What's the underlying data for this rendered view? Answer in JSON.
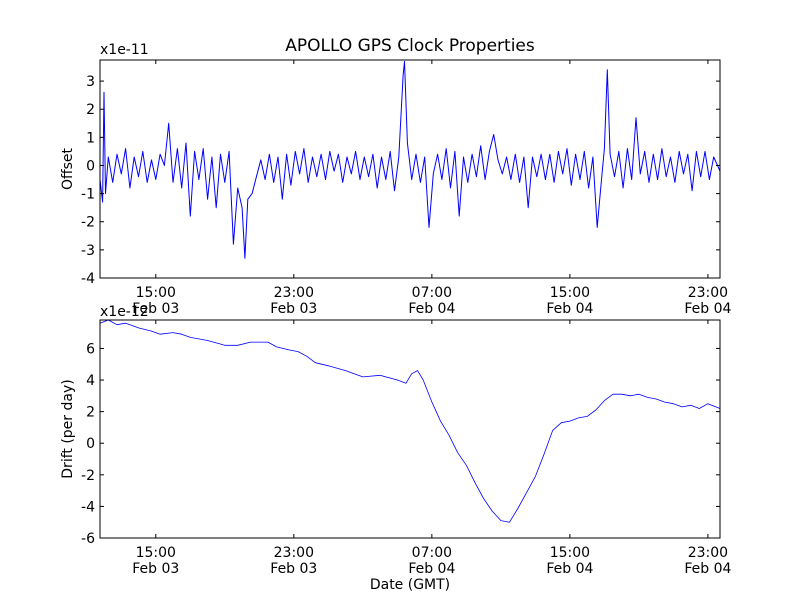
{
  "title": "APOLLO GPS Clock Properties",
  "chart_data": [
    {
      "type": "line",
      "ylabel": "Offset",
      "y_multiplier": "x1e-11",
      "ylim": [
        -4,
        3.75
      ],
      "yticks": [
        -4,
        -3,
        -2,
        -1,
        0,
        1,
        2,
        3
      ],
      "ytick_labels": [
        "-4",
        "-3",
        "-2",
        "-1",
        "0",
        "1",
        "2",
        "3"
      ],
      "xlim": [
        "Feb 03 11:46",
        "Feb 04 23:42"
      ],
      "xticks": [
        {
          "time": "Feb 03 15:00",
          "line1": "15:00",
          "line2": "Feb 03"
        },
        {
          "time": "Feb 03 23:00",
          "line1": "23:00",
          "line2": "Feb 03"
        },
        {
          "time": "Feb 04 07:00",
          "line1": "07:00",
          "line2": "Feb 04"
        },
        {
          "time": "Feb 04 15:00",
          "line1": "15:00",
          "line2": "Feb 04"
        },
        {
          "time": "Feb 04 23:00",
          "line1": "23:00",
          "line2": "Feb 04"
        }
      ],
      "color": "#0000ff",
      "grid": false,
      "series": [
        {
          "points": [
            [
              "Feb 03 11:46",
              -0.5
            ],
            [
              "Feb 03 11:55",
              -1.3
            ],
            [
              "Feb 03 12:00",
              2.6
            ],
            [
              "Feb 03 12:05",
              -1.0
            ],
            [
              "Feb 03 12:15",
              0.3
            ],
            [
              "Feb 03 12:30",
              -0.6
            ],
            [
              "Feb 03 12:45",
              0.4
            ],
            [
              "Feb 03 13:00",
              -0.3
            ],
            [
              "Feb 03 13:15",
              0.6
            ],
            [
              "Feb 03 13:30",
              -0.8
            ],
            [
              "Feb 03 13:45",
              0.3
            ],
            [
              "Feb 03 14:00",
              -0.4
            ],
            [
              "Feb 03 14:15",
              0.5
            ],
            [
              "Feb 03 14:30",
              -0.6
            ],
            [
              "Feb 03 14:45",
              0.2
            ],
            [
              "Feb 03 15:00",
              -0.5
            ],
            [
              "Feb 03 15:15",
              0.4
            ],
            [
              "Feb 03 15:30",
              0.0
            ],
            [
              "Feb 03 15:45",
              1.5
            ],
            [
              "Feb 03 16:00",
              -0.6
            ],
            [
              "Feb 03 16:15",
              0.6
            ],
            [
              "Feb 03 16:30",
              -0.8
            ],
            [
              "Feb 03 16:45",
              0.8
            ],
            [
              "Feb 03 17:00",
              -1.8
            ],
            [
              "Feb 03 17:15",
              0.5
            ],
            [
              "Feb 03 17:30",
              -0.5
            ],
            [
              "Feb 03 17:45",
              0.6
            ],
            [
              "Feb 03 18:00",
              -1.2
            ],
            [
              "Feb 03 18:15",
              0.3
            ],
            [
              "Feb 03 18:30",
              -1.5
            ],
            [
              "Feb 03 18:45",
              0.4
            ],
            [
              "Feb 03 19:00",
              -0.6
            ],
            [
              "Feb 03 19:15",
              0.5
            ],
            [
              "Feb 03 19:30",
              -2.8
            ],
            [
              "Feb 03 19:45",
              -0.8
            ],
            [
              "Feb 03 20:00",
              -1.5
            ],
            [
              "Feb 03 20:10",
              -3.3
            ],
            [
              "Feb 03 20:20",
              -1.2
            ],
            [
              "Feb 03 20:35",
              -1.0
            ],
            [
              "Feb 03 20:50",
              -0.4
            ],
            [
              "Feb 03 21:05",
              0.2
            ],
            [
              "Feb 03 21:20",
              -0.5
            ],
            [
              "Feb 03 21:35",
              0.4
            ],
            [
              "Feb 03 21:50",
              -0.6
            ],
            [
              "Feb 03 22:05",
              0.3
            ],
            [
              "Feb 03 22:20",
              -1.2
            ],
            [
              "Feb 03 22:35",
              0.4
            ],
            [
              "Feb 03 22:50",
              -0.7
            ],
            [
              "Feb 03 23:05",
              0.5
            ],
            [
              "Feb 03 23:20",
              -0.3
            ],
            [
              "Feb 03 23:35",
              0.6
            ],
            [
              "Feb 03 23:50",
              -0.6
            ],
            [
              "Feb 04 00:05",
              0.3
            ],
            [
              "Feb 04 00:20",
              -0.4
            ],
            [
              "Feb 04 00:35",
              0.4
            ],
            [
              "Feb 04 00:50",
              -0.5
            ],
            [
              "Feb 04 01:05",
              0.5
            ],
            [
              "Feb 04 01:20",
              -0.2
            ],
            [
              "Feb 04 01:35",
              0.4
            ],
            [
              "Feb 04 01:50",
              -0.6
            ],
            [
              "Feb 04 02:05",
              0.3
            ],
            [
              "Feb 04 02:20",
              -0.3
            ],
            [
              "Feb 04 02:35",
              0.5
            ],
            [
              "Feb 04 02:50",
              -0.5
            ],
            [
              "Feb 04 03:05",
              0.3
            ],
            [
              "Feb 04 03:20",
              -0.4
            ],
            [
              "Feb 04 03:35",
              0.4
            ],
            [
              "Feb 04 03:50",
              -0.8
            ],
            [
              "Feb 04 04:05",
              0.3
            ],
            [
              "Feb 04 04:20",
              -0.5
            ],
            [
              "Feb 04 04:35",
              0.5
            ],
            [
              "Feb 04 04:50",
              -0.9
            ],
            [
              "Feb 04 05:05",
              0.3
            ],
            [
              "Feb 04 05:20",
              3.2
            ],
            [
              "Feb 04 05:25",
              3.7
            ],
            [
              "Feb 04 05:35",
              0.8
            ],
            [
              "Feb 04 05:50",
              -0.5
            ],
            [
              "Feb 04 06:05",
              0.4
            ],
            [
              "Feb 04 06:20",
              -0.6
            ],
            [
              "Feb 04 06:35",
              0.3
            ],
            [
              "Feb 04 06:50",
              -2.2
            ],
            [
              "Feb 04 07:05",
              -0.3
            ],
            [
              "Feb 04 07:20",
              0.4
            ],
            [
              "Feb 04 07:35",
              -0.5
            ],
            [
              "Feb 04 07:50",
              0.6
            ],
            [
              "Feb 04 08:05",
              -0.8
            ],
            [
              "Feb 04 08:20",
              0.5
            ],
            [
              "Feb 04 08:35",
              -1.8
            ],
            [
              "Feb 04 08:50",
              0.3
            ],
            [
              "Feb 04 09:05",
              -0.6
            ],
            [
              "Feb 04 09:20",
              0.4
            ],
            [
              "Feb 04 09:35",
              -0.4
            ],
            [
              "Feb 04 09:50",
              0.7
            ],
            [
              "Feb 04 10:05",
              -0.5
            ],
            [
              "Feb 04 10:20",
              0.5
            ],
            [
              "Feb 04 10:35",
              1.1
            ],
            [
              "Feb 04 10:50",
              0.2
            ],
            [
              "Feb 04 11:05",
              -0.3
            ],
            [
              "Feb 04 11:20",
              0.3
            ],
            [
              "Feb 04 11:35",
              -0.5
            ],
            [
              "Feb 04 11:50",
              0.4
            ],
            [
              "Feb 04 12:05",
              -0.6
            ],
            [
              "Feb 04 12:20",
              0.3
            ],
            [
              "Feb 04 12:35",
              -1.5
            ],
            [
              "Feb 04 12:50",
              0.3
            ],
            [
              "Feb 04 13:05",
              -0.4
            ],
            [
              "Feb 04 13:20",
              0.4
            ],
            [
              "Feb 04 13:35",
              -0.5
            ],
            [
              "Feb 04 13:50",
              0.4
            ],
            [
              "Feb 04 14:05",
              -0.6
            ],
            [
              "Feb 04 14:20",
              0.5
            ],
            [
              "Feb 04 14:35",
              -0.3
            ],
            [
              "Feb 04 14:50",
              0.6
            ],
            [
              "Feb 04 15:05",
              -0.7
            ],
            [
              "Feb 04 15:20",
              0.4
            ],
            [
              "Feb 04 15:35",
              -0.5
            ],
            [
              "Feb 04 15:50",
              0.5
            ],
            [
              "Feb 04 16:05",
              -0.8
            ],
            [
              "Feb 04 16:20",
              0.3
            ],
            [
              "Feb 04 16:35",
              -2.2
            ],
            [
              "Feb 04 16:50",
              -0.5
            ],
            [
              "Feb 04 17:00",
              0.6
            ],
            [
              "Feb 04 17:10",
              3.4
            ],
            [
              "Feb 04 17:20",
              0.4
            ],
            [
              "Feb 04 17:35",
              -0.4
            ],
            [
              "Feb 04 17:50",
              0.5
            ],
            [
              "Feb 04 18:05",
              -0.8
            ],
            [
              "Feb 04 18:20",
              0.6
            ],
            [
              "Feb 04 18:35",
              -0.5
            ],
            [
              "Feb 04 18:50",
              1.7
            ],
            [
              "Feb 04 19:05",
              -0.3
            ],
            [
              "Feb 04 19:20",
              0.5
            ],
            [
              "Feb 04 19:35",
              -0.6
            ],
            [
              "Feb 04 19:50",
              0.4
            ],
            [
              "Feb 04 20:05",
              -0.5
            ],
            [
              "Feb 04 20:20",
              0.6
            ],
            [
              "Feb 04 20:35",
              -0.4
            ],
            [
              "Feb 04 20:50",
              0.3
            ],
            [
              "Feb 04 21:05",
              -0.6
            ],
            [
              "Feb 04 21:20",
              0.5
            ],
            [
              "Feb 04 21:35",
              -0.3
            ],
            [
              "Feb 04 21:50",
              0.4
            ],
            [
              "Feb 04 22:05",
              -0.9
            ],
            [
              "Feb 04 22:20",
              0.5
            ],
            [
              "Feb 04 22:35",
              -0.4
            ],
            [
              "Feb 04 22:50",
              0.5
            ],
            [
              "Feb 04 23:05",
              -0.5
            ],
            [
              "Feb 04 23:20",
              0.3
            ],
            [
              "Feb 04 23:42",
              -0.2
            ]
          ]
        }
      ]
    },
    {
      "type": "line",
      "ylabel": "Drift (per day)",
      "xlabel": "Date (GMT)",
      "y_multiplier": "x1e-12",
      "ylim": [
        -6,
        7.8
      ],
      "yticks": [
        -6,
        -4,
        -2,
        0,
        2,
        4,
        6
      ],
      "ytick_labels": [
        "-6",
        "-4",
        "-2",
        "0",
        "2",
        "4",
        "6"
      ],
      "xlim": [
        "Feb 03 11:46",
        "Feb 04 23:42"
      ],
      "xticks": [
        {
          "time": "Feb 03 15:00",
          "line1": "15:00",
          "line2": "Feb 03"
        },
        {
          "time": "Feb 03 23:00",
          "line1": "23:00",
          "line2": "Feb 03"
        },
        {
          "time": "Feb 04 07:00",
          "line1": "07:00",
          "line2": "Feb 04"
        },
        {
          "time": "Feb 04 15:00",
          "line1": "15:00",
          "line2": "Feb 04"
        },
        {
          "time": "Feb 04 23:00",
          "line1": "23:00",
          "line2": "Feb 04"
        }
      ],
      "color": "#0000ff",
      "grid": false,
      "series": [
        {
          "points": [
            [
              "Feb 03 11:46",
              7.6
            ],
            [
              "Feb 03 12:15",
              7.8
            ],
            [
              "Feb 03 12:45",
              7.5
            ],
            [
              "Feb 03 13:15",
              7.6
            ],
            [
              "Feb 03 14:00",
              7.3
            ],
            [
              "Feb 03 14:45",
              7.1
            ],
            [
              "Feb 03 15:15",
              6.9
            ],
            [
              "Feb 03 16:00",
              7.0
            ],
            [
              "Feb 03 16:30",
              6.9
            ],
            [
              "Feb 03 17:00",
              6.7
            ],
            [
              "Feb 03 18:00",
              6.5
            ],
            [
              "Feb 03 19:00",
              6.2
            ],
            [
              "Feb 03 19:45",
              6.2
            ],
            [
              "Feb 03 20:30",
              6.4
            ],
            [
              "Feb 03 21:30",
              6.4
            ],
            [
              "Feb 03 22:00",
              6.1
            ],
            [
              "Feb 03 22:45",
              5.9
            ],
            [
              "Feb 03 23:15",
              5.8
            ],
            [
              "Feb 03 23:45",
              5.5
            ],
            [
              "Feb 04 00:15",
              5.1
            ],
            [
              "Feb 04 01:00",
              4.9
            ],
            [
              "Feb 04 02:00",
              4.6
            ],
            [
              "Feb 04 03:00",
              4.2
            ],
            [
              "Feb 04 04:00",
              4.3
            ],
            [
              "Feb 04 05:00",
              4.0
            ],
            [
              "Feb 04 05:30",
              3.8
            ],
            [
              "Feb 04 05:50",
              4.4
            ],
            [
              "Feb 04 06:10",
              4.6
            ],
            [
              "Feb 04 06:30",
              4.0
            ],
            [
              "Feb 04 07:00",
              2.6
            ],
            [
              "Feb 04 07:30",
              1.4
            ],
            [
              "Feb 04 08:00",
              0.5
            ],
            [
              "Feb 04 08:30",
              -0.6
            ],
            [
              "Feb 04 09:00",
              -1.4
            ],
            [
              "Feb 04 09:30",
              -2.5
            ],
            [
              "Feb 04 10:00",
              -3.5
            ],
            [
              "Feb 04 10:30",
              -4.3
            ],
            [
              "Feb 04 11:00",
              -4.9
            ],
            [
              "Feb 04 11:30",
              -5.0
            ],
            [
              "Feb 04 12:00",
              -4.1
            ],
            [
              "Feb 04 12:30",
              -3.1
            ],
            [
              "Feb 04 13:00",
              -2.1
            ],
            [
              "Feb 04 13:30",
              -0.7
            ],
            [
              "Feb 04 14:00",
              0.8
            ],
            [
              "Feb 04 14:30",
              1.3
            ],
            [
              "Feb 04 15:00",
              1.4
            ],
            [
              "Feb 04 15:30",
              1.6
            ],
            [
              "Feb 04 16:00",
              1.7
            ],
            [
              "Feb 04 16:30",
              2.1
            ],
            [
              "Feb 04 17:00",
              2.7
            ],
            [
              "Feb 04 17:30",
              3.1
            ],
            [
              "Feb 04 18:00",
              3.1
            ],
            [
              "Feb 04 18:30",
              3.0
            ],
            [
              "Feb 04 19:00",
              3.1
            ],
            [
              "Feb 04 19:30",
              2.9
            ],
            [
              "Feb 04 20:00",
              2.8
            ],
            [
              "Feb 04 20:30",
              2.6
            ],
            [
              "Feb 04 21:00",
              2.5
            ],
            [
              "Feb 04 21:30",
              2.3
            ],
            [
              "Feb 04 22:00",
              2.4
            ],
            [
              "Feb 04 22:30",
              2.2
            ],
            [
              "Feb 04 23:00",
              2.5
            ],
            [
              "Feb 04 23:42",
              2.2
            ]
          ]
        }
      ]
    }
  ]
}
